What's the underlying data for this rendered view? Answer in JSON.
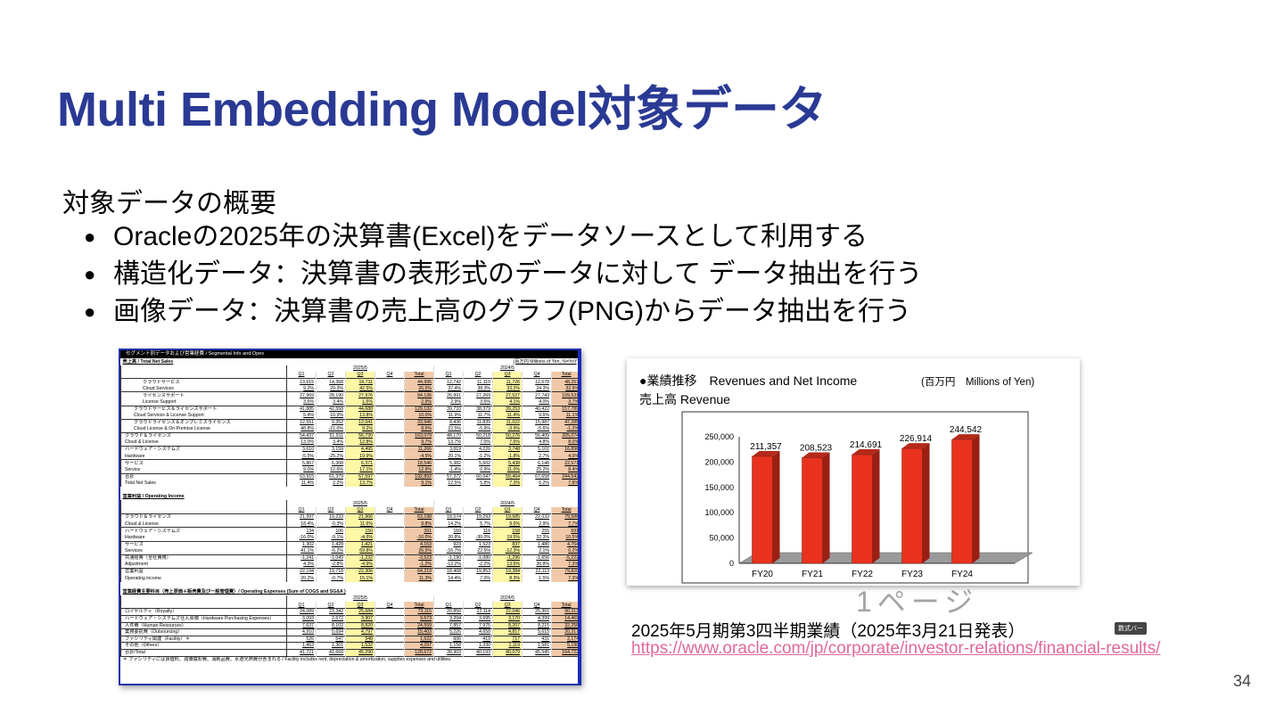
{
  "slide": {
    "title": "Multi Embedding Model対象データ",
    "subheading": "対象データの概要",
    "bullets": [
      "Oracleの2025年の決算書(Excel)をデータソースとして利用する",
      "構造化データ：決算書の表形式のデータに対して データ抽出を行う",
      "画像データ：決算書の売上高のグラフ(PNG)からデータ抽出を行う"
    ],
    "caption": "2025年5月期第3四半期業績（2025年3月21日発表）",
    "link": "https://www.oracle.com/jp/corporate/investor-relations/financial-results/",
    "page_number": "34"
  },
  "spreadsheet": {
    "window_title": "セグメント別データおよび営業経費 / Segmental Info and Opex",
    "unit_note": "(百万円 Millions of Yen, %=YoY)",
    "overlay_text": "1ページ",
    "tooltip": "数式バー",
    "years": [
      "2025/5",
      "2024/5"
    ],
    "quarters": [
      "Q1",
      "Q2",
      "Q3",
      "Q4",
      "Total",
      "Q1",
      "Q2",
      "Q3",
      "Q4",
      "Total"
    ],
    "sections": [
      {
        "title": "売上高 / Total Net Sales",
        "rows": [
          {
            "jp": "クラウドサービス",
            "en": "Cloud Services",
            "indent": 2,
            "values": [
              "13,915",
              "14,368",
              "16,711",
              "",
              "44,995",
              "12,742",
              "11,110",
              "11,726",
              "12,678",
              "48,257"
            ],
            "yoy": [
              "9.2%",
              "29.3%",
              "42.5%",
              "",
              "26.5%",
              "37.4%",
              "38.3%",
              "33.2%",
              "24.3%",
              "32.9%"
            ]
          },
          {
            "jp": "ライセンスサポート",
            "en": "License Support",
            "indent": 2,
            "values": [
              "27,969",
              "28,190",
              "27,976",
              "",
              "84,136",
              "26,991",
              "27,269",
              "27,527",
              "27,743",
              "109,531"
            ],
            "yoy": [
              "3.6%",
              "3.4%",
              "1.6%",
              "",
              "2.9%",
              "2.9%",
              "3.6%",
              "4.1%",
              "4.0%",
              "3.7%"
            ]
          },
          {
            "jp": "クラウドサービス＆ライセンスサポート",
            "en": "Cloud Services & License Support",
            "indent": 1,
            "values": [
              "41,885",
              "42,558",
              "44,688",
              "",
              "129,132",
              "39,733",
              "38,379",
              "39,253",
              "40,422",
              "157,789"
            ],
            "yoy": [
              "5.4%",
              "10.9%",
              "13.8%",
              "",
              "10.0%",
              "11.9%",
              "11.7%",
              "11.4%",
              "9.6%",
              "11.1%"
            ]
          },
          {
            "jp": "クラウドライセンス＆オンプレミスライセンス",
            "en": "Cloud License & On Premise License",
            "indent": 1,
            "values": [
              "12,551",
              "9,352",
              "12,041",
              "",
              "33,946",
              "8,436",
              "11,839",
              "11,022",
              "15,987",
              "47,285"
            ],
            "yoy": [
              "48.8%",
              "-21.0%",
              "9.2%",
              "",
              "8.5%",
              "22.5%",
              "-5.9%",
              "-3.9%",
              "-5.6%",
              "-1.2%"
            ]
          },
          {
            "jp": "クラウド＆ライセンス",
            "en": "Cloud & License",
            "indent": 0,
            "values": [
              "54,437",
              "51,911",
              "56,730",
              "",
              "163,079",
              "48,170",
              "50,218",
              "50,276",
              "56,409",
              "205,074"
            ],
            "yoy": [
              "13.0%",
              "3.4%",
              "12.8%",
              "",
              "9.7%",
              "13.7%",
              "7.0%",
              "7.6%",
              "4.8%",
              "8.0%"
            ]
          },
          {
            "jp": "ハードウェア・システムズ",
            "en": "Hardware",
            "indent": 0,
            "values": [
              "3,610",
              "3,159",
              "4,495",
              "",
              "11,266",
              "3,819",
              "4,226",
              "3,748",
              "5,101",
              "16,896"
            ],
            "yoy": [
              "-5.5%",
              "-25.2%",
              "19.9%",
              "",
              "-4.5%",
              "20.1%",
              "-1.2%",
              "-1.8%",
              "2.7%",
              "4.0%"
            ]
          },
          {
            "jp": "サービス",
            "en": "Service",
            "indent": 0,
            "values": [
              "5,867",
              "6,308",
              "6,371",
              "",
              "18,546",
              "5,382",
              "5,602",
              "5,438",
              "6,148",
              "22,571"
            ],
            "yoy": [
              "9.0%",
              "12.6%",
              "17.1%",
              "",
              "12.9%",
              "-1.4%",
              "0.9%",
              "11.0%",
              "25.2%",
              "8.4%"
            ]
          },
          {
            "jp": "合計",
            "en": "Total Net Sales",
            "indent": 0,
            "values": [
              "63,915",
              "61,379",
              "67,597",
              "",
              "192,892",
              "57,372",
              "60,047",
              "59,464",
              "67,658",
              "244,542"
            ],
            "yoy": [
              "11.4%",
              "2.2%",
              "13.7%",
              "",
              "9.1%",
              "12.5%",
              "5.8%",
              "7.3%",
              "6.2%",
              "7.8%"
            ]
          }
        ]
      },
      {
        "title": "営業利益 / Operating Income",
        "rows": [
          {
            "jp": "クラウド＆ライセンス",
            "en": "Cloud & License",
            "indent": 0,
            "values": [
              "21,997",
              "19,233",
              "21,966",
              "",
              "63,198",
              "18,574",
              "19,293",
              "19,685",
              "22,033",
              "79,586"
            ],
            "yoy": [
              "18.4%",
              "-0.3%",
              "11.6%",
              "",
              "9.8%",
              "14.2%",
              "5.7%",
              "9.6%",
              "2.9%",
              "7.7%"
            ]
          },
          {
            "jp": "ハードウェア・システムズ",
            "en": "Hardware",
            "indent": 0,
            "values": [
              "134",
              "106",
              "150",
              "",
              "391",
              "160",
              "116",
              "158",
              "255",
              "691"
            ],
            "yoy": [
              "-16.0%",
              "-9.1%",
              "-4.6%",
              "",
              "-10.0%",
              "20.8%",
              "-30.0%",
              "19.5%",
              "32.3%",
              "10.5%"
            ]
          },
          {
            "jp": "サービス",
            "en": "Services",
            "indent": 0,
            "values": [
              "1,302",
              "1,428",
              "1,421",
              "",
              "4,153",
              "923",
              "1,523",
              "837",
              "1,480",
              "4,764"
            ],
            "yoy": [
              "41.1%",
              "-6.2%",
              "69.8%",
              "",
              "26.5%",
              "-16.7%",
              "22.5%",
              "-12.3%",
              "2.1%",
              "0.2%"
            ]
          },
          {
            "jp": "共通経費（全社費用）",
            "en": "Adjustment",
            "indent": 0,
            "values": [
              "-1,241",
              "-1,049",
              "-1,232",
              "",
              "-3,523",
              "-1,190",
              "-1,080",
              "-1,296",
              "-1,656",
              "-5,222"
            ],
            "yoy": [
              "4.3%",
              "-2.8%",
              "-4.9%",
              "",
              "-1.2%",
              "-12.2%",
              "-2.2%",
              "13.6%",
              "30.8%",
              "7.3%"
            ]
          },
          {
            "jp": "営業利益",
            "en": "Operating income",
            "indent": 0,
            "values": [
              "22,194",
              "19,718",
              "22,306",
              "",
              "64,219",
              "18,468",
              "19,853",
              "19,384",
              "22,113",
              "79,820"
            ],
            "yoy": [
              "20.2%",
              "-0.7%",
              "15.1%",
              "",
              "11.3%",
              "14.4%",
              "7.0%",
              "8.3%",
              "1.5%",
              "7.3%"
            ]
          }
        ]
      },
      {
        "title": "営業経費主要科目（売上原価＋販売費及び一般管理費）/ Operating Expenses (Sum of COGS and SG&A )",
        "rows": [
          {
            "jp": "ロイヤルティ（Royalty）",
            "values": [
              "24,089",
              "23,342",
              "25,684",
              "",
              "73,115",
              "20,850",
              "22,114",
              "22,046",
              "25,301",
              "90,313"
            ]
          },
          {
            "jp": "ハードウェア・システムズ仕入原価（Hardware Purchasing Expenses）",
            "values": [
              "3,093",
              "2,672",
              "3,907",
              "",
              "9,673",
              "3,204",
              "3,695",
              "3,170",
              "4,399",
              "14,469"
            ]
          },
          {
            "jp": "人件費（Human Resources）",
            "values": [
              "7,637",
              "8,102",
              "8,820",
              "",
              "24,559",
              "7,857",
              "7,975",
              "8,207",
              "8,215",
              "32,256"
            ]
          },
          {
            "jp": "業務委託費（Outsourcing）",
            "values": [
              "4,910",
              "5,694",
              "4,797",
              "",
              "15,403",
              "5,226",
              "4,658",
              "4,817",
              "5,615",
              "20,317"
            ]
          },
          {
            "jp": "ファシリティ関連（Facility）＊",
            "values": [
              "526",
              "547",
              "548",
              "",
              "1,622",
              "606",
              "419",
              "717",
              "431",
              "2,174"
            ]
          },
          {
            "jp": "その他（Others）",
            "values": [
              "1,463",
              "1,301",
              "1,532",
              "",
              "4,297",
              "1,158",
              "1,330",
              "1,119",
              "1,581",
              "5,190"
            ]
          },
          {
            "jp": "合計/Total",
            "values": [
              "41,721",
              "41,660",
              "45,290",
              "",
              "128,672",
              "38,903",
              "40,193",
              "40,079",
              "45,545",
              "164,722"
            ]
          }
        ],
        "footnote": "＊ ファシリティには賃借料、減価償却費、消耗品費、水道光熱費が含まれる / Facility includes rent, depreciation & amortization, supplies expenses and utilities."
      }
    ]
  },
  "chart_data": {
    "type": "bar",
    "header": "●業績推移　Revenues and Net Income",
    "unit": "(百万円　Millions of Yen)",
    "title": "売上高 Revenue",
    "categories": [
      "FY20",
      "FY21",
      "FY22",
      "FY23",
      "FY24"
    ],
    "values": [
      211357,
      208523,
      214691,
      226914,
      244542
    ],
    "data_labels": [
      "211,357",
      "208,523",
      "214,691",
      "226,914",
      "244,542"
    ],
    "yticks": [
      "0",
      "50,000",
      "100,000",
      "150,000",
      "200,000",
      "250,000"
    ],
    "ylim": [
      0,
      250000
    ],
    "bar_color": "#e8321e",
    "style": "3d",
    "grid": false
  }
}
